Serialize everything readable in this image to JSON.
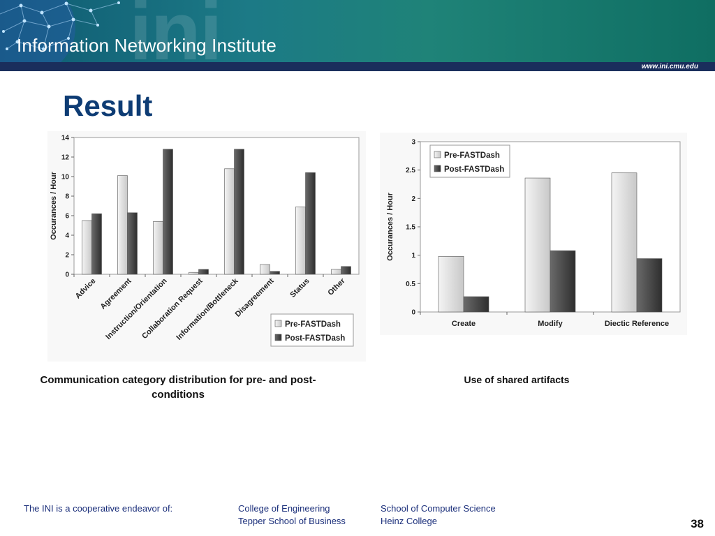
{
  "header": {
    "institute_name": "Information Networking Institute",
    "logo_text": "ini",
    "website": "www.ini.cmu.edu"
  },
  "slide": {
    "title": "Result",
    "page_number": "38"
  },
  "captions": {
    "chart1": "Communication category distribution for pre- and post-conditions",
    "chart2": "Use of shared artifacts"
  },
  "footer": {
    "intro": "The INI is a cooperative endeavor of:",
    "col1": [
      "College of Engineering",
      "Tepper School of Business"
    ],
    "col2": [
      "School of Computer Science",
      "Heinz College"
    ]
  },
  "colors": {
    "title": "#0e3c74",
    "pre_series": "#dcdcdc",
    "post_series": "#4a4a4a",
    "footer_text": "#1a2e7a"
  },
  "chart_data": [
    {
      "type": "bar",
      "categories": [
        "Advice",
        "Agreement",
        "Instruction/Orientation",
        "Collaboration Request",
        "Information/Bottleneck",
        "Disagreement",
        "Status",
        "Other"
      ],
      "series": [
        {
          "name": "Pre-FASTDash",
          "values": [
            5.5,
            10.1,
            5.4,
            0.2,
            10.8,
            1.0,
            6.9,
            0.5
          ]
        },
        {
          "name": "Post-FASTDash",
          "values": [
            6.2,
            6.3,
            12.8,
            0.5,
            12.8,
            0.3,
            10.4,
            0.8
          ]
        }
      ],
      "ylabel": "Occurances / Hour",
      "ylim": [
        0,
        14
      ],
      "yticks": [
        "0",
        "2",
        "4",
        "6",
        "8",
        "10",
        "12",
        "14"
      ],
      "legend": "bottom-right",
      "grid": false
    },
    {
      "type": "bar",
      "categories": [
        "Create",
        "Modify",
        "Diectic Reference"
      ],
      "series": [
        {
          "name": "Pre-FASTDash",
          "values": [
            0.98,
            2.36,
            2.45
          ]
        },
        {
          "name": "Post-FASTDash",
          "values": [
            0.27,
            1.08,
            0.94
          ]
        }
      ],
      "ylabel": "Occurances / Hour",
      "ylim": [
        0,
        3
      ],
      "yticks": [
        "0",
        "0.5",
        "1",
        "1.5",
        "2",
        "2.5",
        "3"
      ],
      "legend": "top-left",
      "grid": false
    }
  ]
}
